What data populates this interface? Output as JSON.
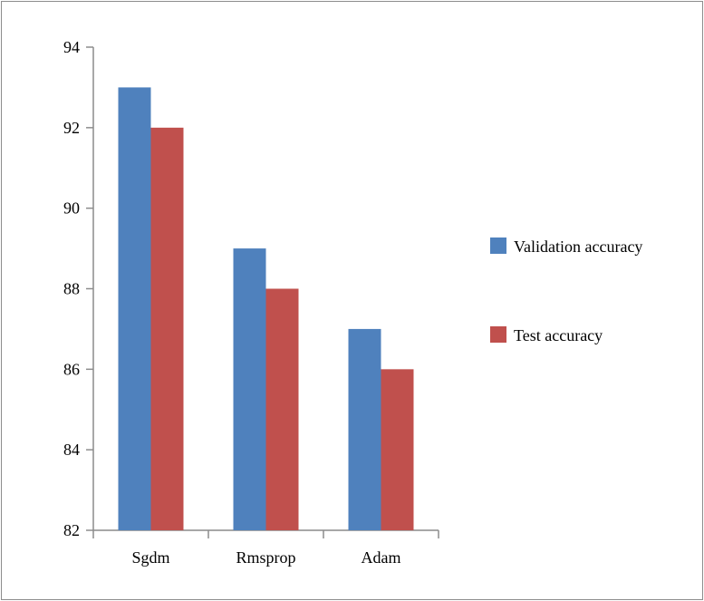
{
  "chart_data": {
    "type": "bar",
    "title": "",
    "xlabel": "",
    "ylabel": "",
    "categories": [
      "Sgdm",
      "Rmsprop",
      "Adam"
    ],
    "series": [
      {
        "name": "Validation accuracy",
        "color": "#4f81bd",
        "values": [
          93,
          89,
          87
        ]
      },
      {
        "name": "Test accuracy",
        "color": "#c0504d",
        "values": [
          92,
          88,
          86
        ]
      }
    ],
    "ylim": [
      82,
      94
    ],
    "yticks": [
      82,
      84,
      86,
      88,
      90,
      92,
      94
    ],
    "grid": false,
    "legend_position": "right"
  }
}
